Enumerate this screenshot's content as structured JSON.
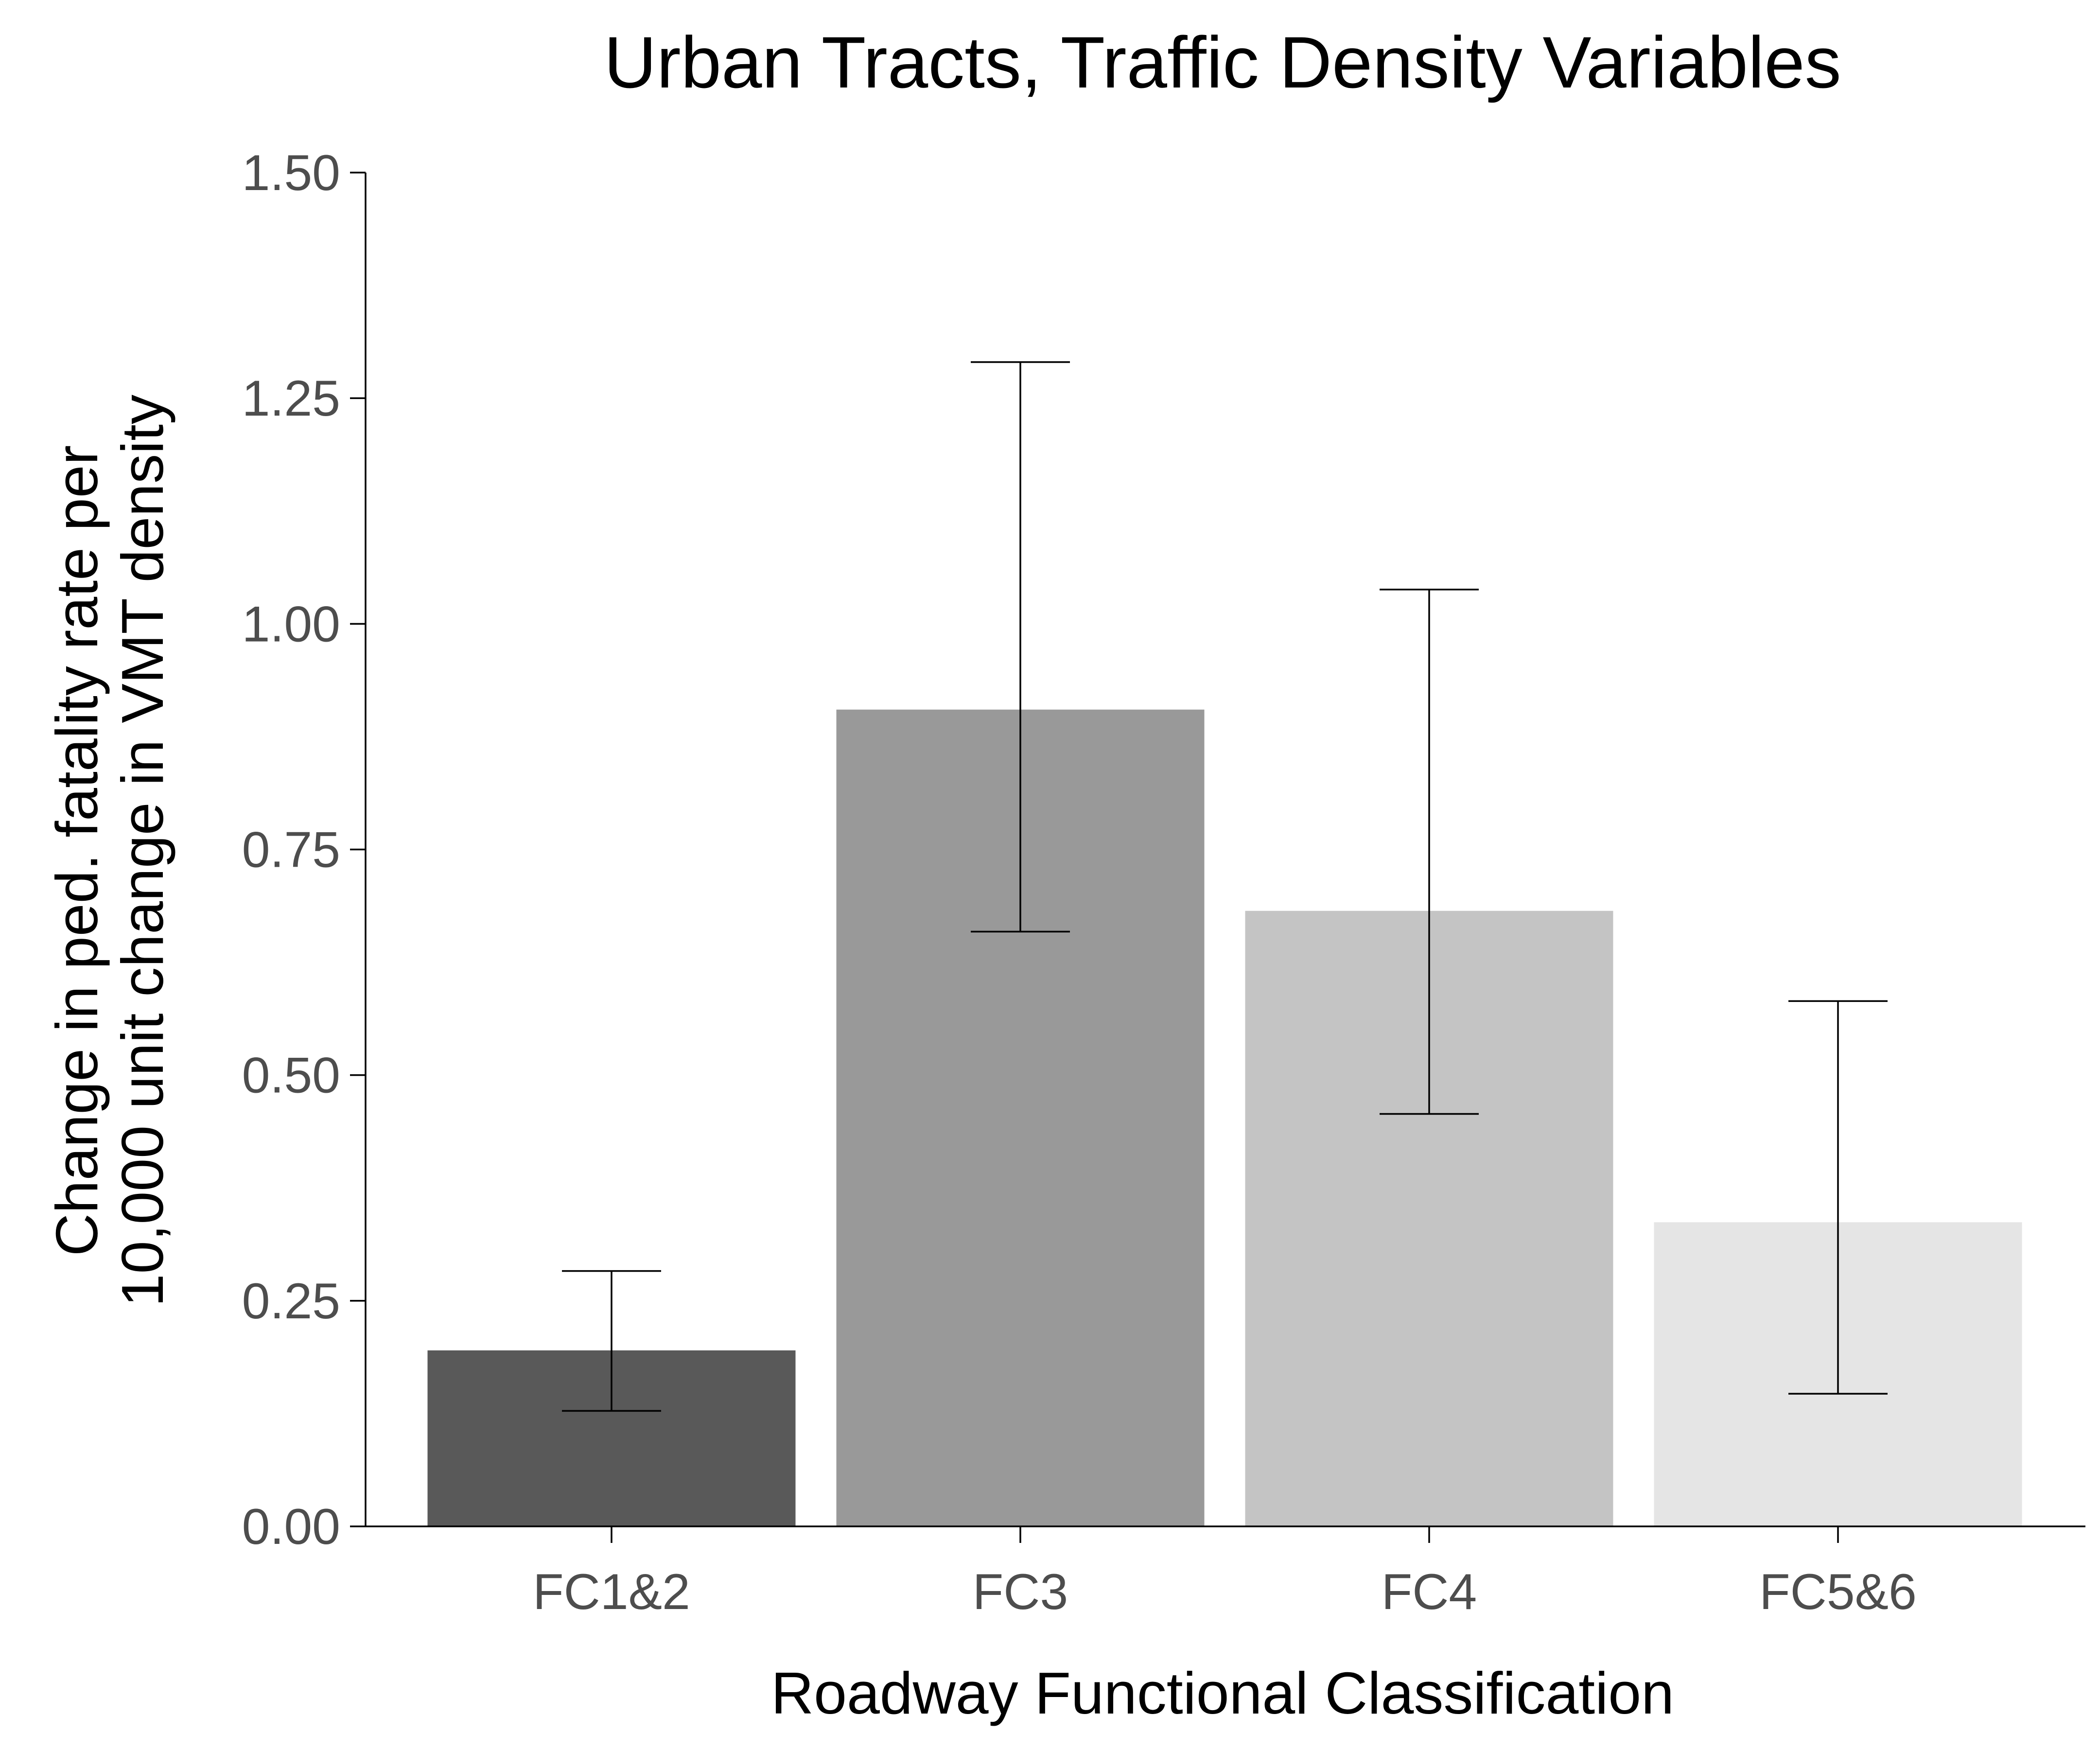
{
  "chart_data": {
    "type": "bar",
    "title": "Urban Tracts, Traffic Density Variables",
    "xlabel": "Roadway Functional Classification",
    "ylabel_lines": [
      "Change in ped. fatality rate per",
      "10,000 unit change in VMT density"
    ],
    "categories": [
      "FC1&2",
      "FC3",
      "FC4",
      "FC5&6"
    ],
    "values": [
      0.195,
      0.905,
      0.682,
      0.337
    ],
    "error_low": [
      0.128,
      0.659,
      0.457,
      0.147
    ],
    "error_high": [
      0.283,
      1.29,
      1.038,
      0.582
    ],
    "bar_colors": [
      "#595959",
      "#999999",
      "#c4c4c4",
      "#e5e5e5"
    ],
    "ylim": [
      0,
      1.5
    ],
    "yticks": [
      0,
      0.25,
      0.5,
      0.75,
      1.0,
      1.25,
      1.5
    ],
    "ytick_labels": [
      "0.00",
      "0.25",
      "0.50",
      "0.75",
      "1.00",
      "1.25",
      "1.50"
    ],
    "grid": false,
    "legend": "none"
  }
}
